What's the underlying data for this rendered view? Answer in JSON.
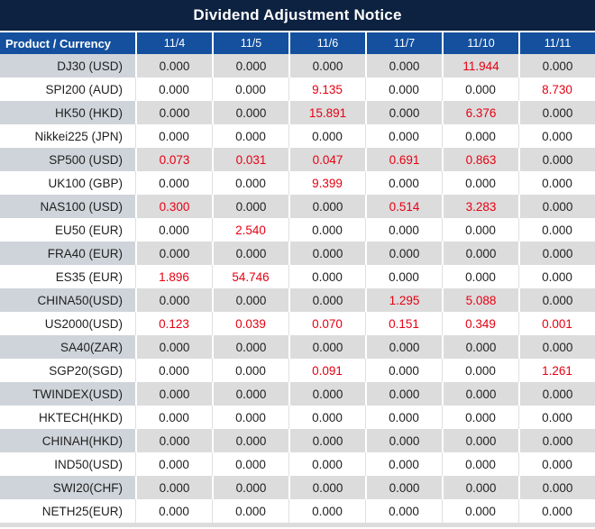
{
  "title": "Dividend Adjustment Notice",
  "colors": {
    "title_bg": "#0d2140",
    "header_bg": "#14509e",
    "stripe_row_bg": "#dcdcdc",
    "stripe_product_bg": "#cfd4da",
    "highlight_red": "#e60012",
    "text": "#1f1f1f"
  },
  "table": {
    "columns": [
      "Product / Currency",
      "11/4",
      "11/5",
      "11/6",
      "11/7",
      "11/10",
      "11/11"
    ],
    "rows": [
      {
        "product": "DJ30 (USD)",
        "values": [
          "0.000",
          "0.000",
          "0.000",
          "0.000",
          "11.944",
          "0.000"
        ],
        "red": [
          false,
          false,
          false,
          false,
          true,
          false
        ]
      },
      {
        "product": "SPI200 (AUD)",
        "values": [
          "0.000",
          "0.000",
          "9.135",
          "0.000",
          "0.000",
          "8.730"
        ],
        "red": [
          false,
          false,
          true,
          false,
          false,
          true
        ]
      },
      {
        "product": "HK50 (HKD)",
        "values": [
          "0.000",
          "0.000",
          "15.891",
          "0.000",
          "6.376",
          "0.000"
        ],
        "red": [
          false,
          false,
          true,
          false,
          true,
          false
        ]
      },
      {
        "product": "Nikkei225 (JPN)",
        "values": [
          "0.000",
          "0.000",
          "0.000",
          "0.000",
          "0.000",
          "0.000"
        ],
        "red": [
          false,
          false,
          false,
          false,
          false,
          false
        ]
      },
      {
        "product": "SP500 (USD)",
        "values": [
          "0.073",
          "0.031",
          "0.047",
          "0.691",
          "0.863",
          "0.000"
        ],
        "red": [
          true,
          true,
          true,
          true,
          true,
          false
        ]
      },
      {
        "product": "UK100 (GBP)",
        "values": [
          "0.000",
          "0.000",
          "9.399",
          "0.000",
          "0.000",
          "0.000"
        ],
        "red": [
          false,
          false,
          true,
          false,
          false,
          false
        ]
      },
      {
        "product": "NAS100 (USD)",
        "values": [
          "0.300",
          "0.000",
          "0.000",
          "0.514",
          "3.283",
          "0.000"
        ],
        "red": [
          true,
          false,
          false,
          true,
          true,
          false
        ]
      },
      {
        "product": "EU50 (EUR)",
        "values": [
          "0.000",
          "2.540",
          "0.000",
          "0.000",
          "0.000",
          "0.000"
        ],
        "red": [
          false,
          true,
          false,
          false,
          false,
          false
        ]
      },
      {
        "product": "FRA40 (EUR)",
        "values": [
          "0.000",
          "0.000",
          "0.000",
          "0.000",
          "0.000",
          "0.000"
        ],
        "red": [
          false,
          false,
          false,
          false,
          false,
          false
        ]
      },
      {
        "product": "ES35 (EUR)",
        "values": [
          "1.896",
          "54.746",
          "0.000",
          "0.000",
          "0.000",
          "0.000"
        ],
        "red": [
          true,
          true,
          false,
          false,
          false,
          false
        ]
      },
      {
        "product": "CHINA50(USD)",
        "values": [
          "0.000",
          "0.000",
          "0.000",
          "1.295",
          "5.088",
          "0.000"
        ],
        "red": [
          false,
          false,
          false,
          true,
          true,
          false
        ]
      },
      {
        "product": "US2000(USD)",
        "values": [
          "0.123",
          "0.039",
          "0.070",
          "0.151",
          "0.349",
          "0.001"
        ],
        "red": [
          true,
          true,
          true,
          true,
          true,
          true
        ]
      },
      {
        "product": "SA40(ZAR)",
        "values": [
          "0.000",
          "0.000",
          "0.000",
          "0.000",
          "0.000",
          "0.000"
        ],
        "red": [
          false,
          false,
          false,
          false,
          false,
          false
        ]
      },
      {
        "product": "SGP20(SGD)",
        "values": [
          "0.000",
          "0.000",
          "0.091",
          "0.000",
          "0.000",
          "1.261"
        ],
        "red": [
          false,
          false,
          true,
          false,
          false,
          true
        ]
      },
      {
        "product": "TWINDEX(USD)",
        "values": [
          "0.000",
          "0.000",
          "0.000",
          "0.000",
          "0.000",
          "0.000"
        ],
        "red": [
          false,
          false,
          false,
          false,
          false,
          false
        ]
      },
      {
        "product": "HKTECH(HKD)",
        "values": [
          "0.000",
          "0.000",
          "0.000",
          "0.000",
          "0.000",
          "0.000"
        ],
        "red": [
          false,
          false,
          false,
          false,
          false,
          false
        ]
      },
      {
        "product": "CHINAH(HKD)",
        "values": [
          "0.000",
          "0.000",
          "0.000",
          "0.000",
          "0.000",
          "0.000"
        ],
        "red": [
          false,
          false,
          false,
          false,
          false,
          false
        ]
      },
      {
        "product": "IND50(USD)",
        "values": [
          "0.000",
          "0.000",
          "0.000",
          "0.000",
          "0.000",
          "0.000"
        ],
        "red": [
          false,
          false,
          false,
          false,
          false,
          false
        ]
      },
      {
        "product": "SWI20(CHF)",
        "values": [
          "0.000",
          "0.000",
          "0.000",
          "0.000",
          "0.000",
          "0.000"
        ],
        "red": [
          false,
          false,
          false,
          false,
          false,
          false
        ]
      },
      {
        "product": "NETH25(EUR)",
        "values": [
          "0.000",
          "0.000",
          "0.000",
          "0.000",
          "0.000",
          "0.000"
        ],
        "red": [
          false,
          false,
          false,
          false,
          false,
          false
        ]
      }
    ]
  }
}
